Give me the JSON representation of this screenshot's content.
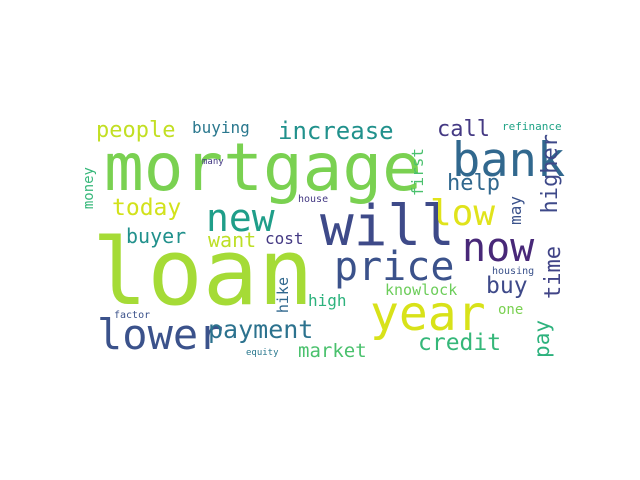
{
  "words": [
    {
      "text": "loan",
      "color": "#a5db36"
    },
    {
      "text": "mortgage",
      "color": "#7ad151"
    },
    {
      "text": "will",
      "color": "#3e4a89"
    },
    {
      "text": "bank",
      "color": "#31688e"
    },
    {
      "text": "year",
      "color": "#d8e219"
    },
    {
      "text": "price",
      "color": "#3b528b"
    },
    {
      "text": "lower",
      "color": "#3b528b"
    },
    {
      "text": "now",
      "color": "#482878"
    },
    {
      "text": "new",
      "color": "#1f9e89"
    },
    {
      "text": "low",
      "color": "#e0e31b"
    },
    {
      "text": "payment",
      "color": "#2c728e"
    },
    {
      "text": "increase",
      "color": "#21918c"
    },
    {
      "text": "today",
      "color": "#d2e21b"
    },
    {
      "text": "people",
      "color": "#c2df23"
    },
    {
      "text": "credit",
      "color": "#35b779"
    },
    {
      "text": "market",
      "color": "#4ac16d"
    },
    {
      "text": "help",
      "color": "#31688e"
    },
    {
      "text": "call",
      "color": "#443983"
    },
    {
      "text": "buy",
      "color": "#3e4989"
    },
    {
      "text": "buyer",
      "color": "#21918c"
    },
    {
      "text": "want",
      "color": "#bddf26"
    },
    {
      "text": "higher",
      "color": "#3e4989"
    },
    {
      "text": "time",
      "color": "#414487"
    },
    {
      "text": "pay",
      "color": "#2db27d"
    },
    {
      "text": "buying",
      "color": "#2a788e"
    },
    {
      "text": "cost",
      "color": "#443983"
    },
    {
      "text": "knowlock",
      "color": "#6ccd5a"
    },
    {
      "text": "high",
      "color": "#2db27d"
    },
    {
      "text": "hike",
      "color": "#31688e"
    },
    {
      "text": "first",
      "color": "#4ac16d"
    },
    {
      "text": "money",
      "color": "#35b779"
    },
    {
      "text": "may",
      "color": "#3b528b"
    },
    {
      "text": "one",
      "color": "#7ad151"
    },
    {
      "text": "refinance",
      "color": "#20a386"
    },
    {
      "text": "housing",
      "color": "#3b528b"
    },
    {
      "text": "factor",
      "color": "#3b528b"
    },
    {
      "text": "many",
      "color": "#443983"
    },
    {
      "text": "house",
      "color": "#443983"
    },
    {
      "text": "equity",
      "color": "#2a788e"
    }
  ]
}
